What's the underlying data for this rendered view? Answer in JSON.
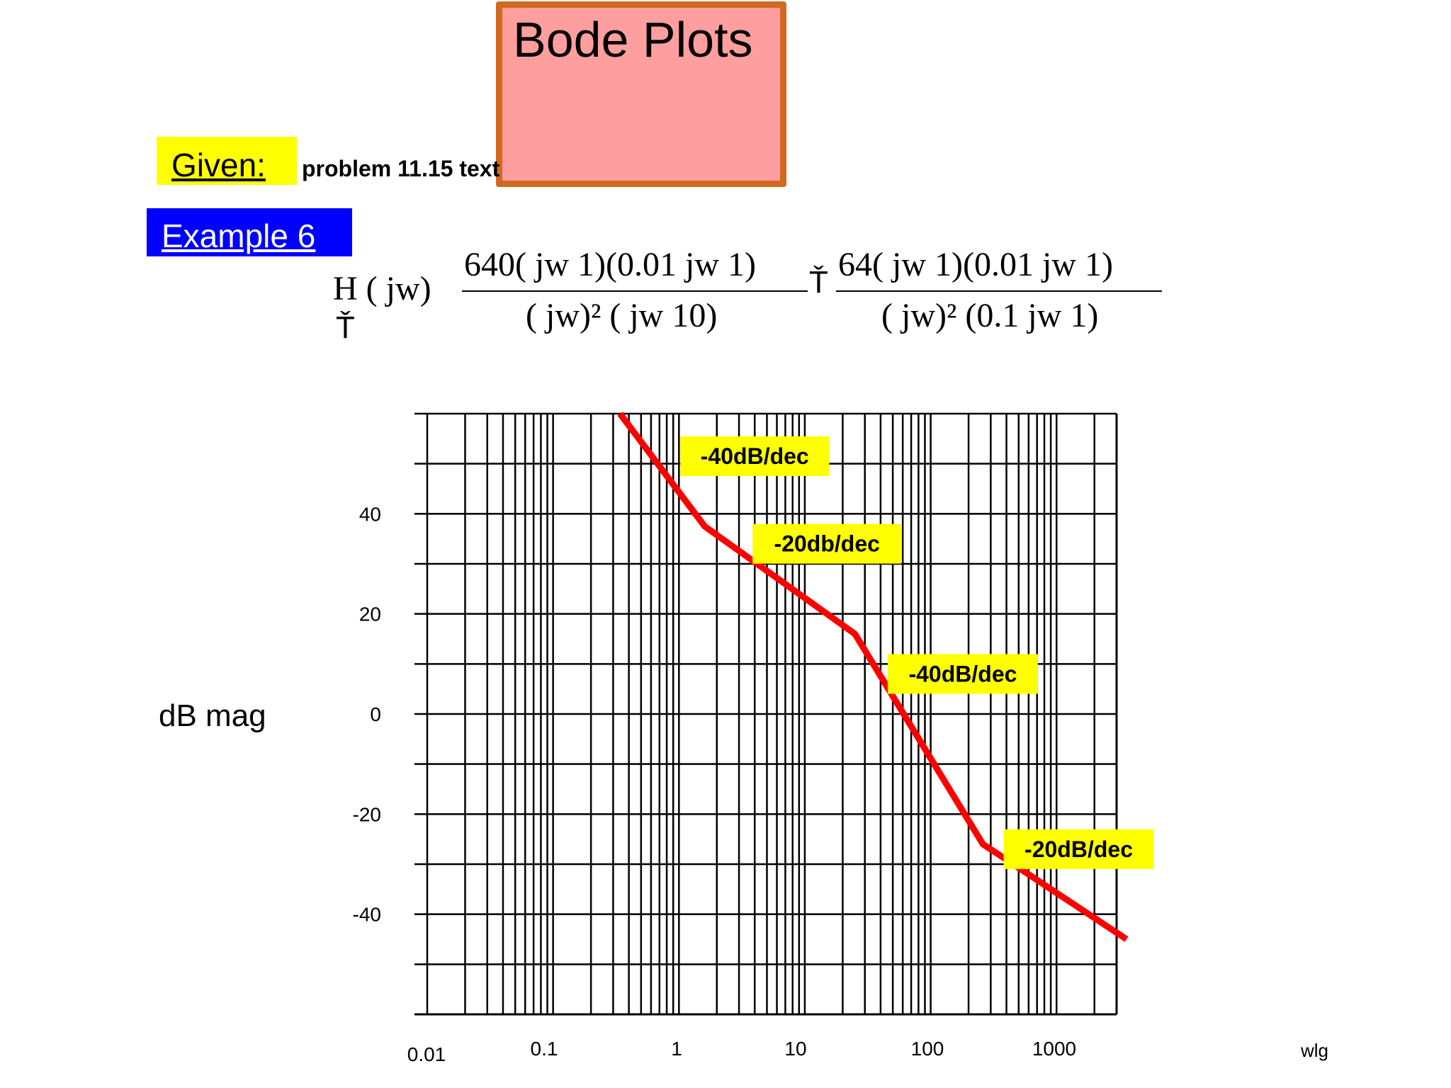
{
  "slide": {
    "title": "Bode Plots",
    "given_label": "Given:",
    "problem_text": "problem 11.15 text",
    "example_label": "Example 6",
    "colors": {
      "title_fill": "#ff9e9e",
      "title_border": "#d2691e",
      "given_fill": "#ffff00",
      "example_fill": "#0000ff",
      "curve": "#ff0000",
      "annotation_fill": "#ffff00"
    }
  },
  "equation": {
    "lhs": "H ( jw)",
    "lhs_equals": "Ť",
    "frac1_num": "640( jw   1)(0.01 jw   1)",
    "frac1_den": "( jw)² ( jw   10)",
    "mid_equals": "Ť",
    "frac2_num": "64( jw   1)(0.01 jw   1)",
    "frac2_den": "( jw)² (0.1 jw   1)"
  },
  "chart_data": {
    "type": "line",
    "x_scale": "log",
    "xlim": [
      0.01,
      3000
    ],
    "ylim": [
      -60,
      60
    ],
    "xlabel": "wlg",
    "ylabel": "dB mag",
    "x_ticks": [
      "0.01",
      "0.1",
      "1",
      "10",
      "100",
      "1000"
    ],
    "y_ticks": [
      "40",
      "20",
      "0",
      "-20",
      "-40"
    ],
    "grid": true,
    "series": [
      {
        "x": [
          0.34,
          1.6,
          25,
          260,
          3600
        ],
        "y": [
          60,
          37.5,
          16,
          -26,
          -45
        ]
      }
    ],
    "annotations": [
      {
        "text": "-40dB/dec",
        "x": 4,
        "y": 51.5
      },
      {
        "text": "-20db/dec",
        "x": 15,
        "y": 34
      },
      {
        "text": "-40dB/dec",
        "x": 180,
        "y": 8
      },
      {
        "text": "-20dB/dec",
        "x": 1500,
        "y": -27
      }
    ]
  }
}
